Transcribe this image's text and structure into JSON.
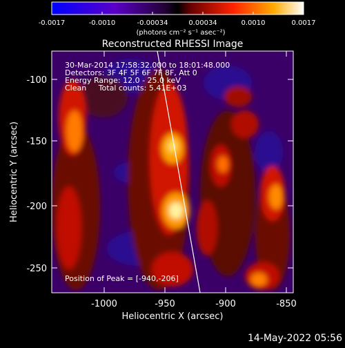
{
  "colorbar": {
    "tick_labels": [
      "-0.0017",
      "-0.0010",
      "-0.00034",
      "0.00034",
      "0.0010",
      "0.0017"
    ],
    "units_text": "(photons cm⁻² s⁻¹ asec⁻²)"
  },
  "title": "Reconstructed RHESSI Image",
  "info": {
    "time_range": "30-Mar-2014 17:58:32.000 to 18:01:48.000",
    "detectors": "Detectors: 3F 4F 5F 6F 7F 8F, Att 0",
    "energy": "Energy Range: 12.0 - 25.0 keV",
    "clean": "Clean     Total counts: 5.41E+03",
    "peak": "Position of Peak = [-940,-206]"
  },
  "x_axis": {
    "label": "Heliocentric X (arcsec)",
    "ticks": [
      "-1000",
      "-950",
      "-900",
      "-850"
    ],
    "range": [
      -1045,
      -838
    ]
  },
  "y_axis": {
    "label": "Heliocentric Y (arcsec)",
    "ticks": [
      "-100",
      "-150",
      "-200",
      "-250"
    ],
    "range": [
      -275,
      -78
    ]
  },
  "image": {
    "peak_xy": [
      -940,
      -206
    ],
    "colors": {
      "low": "#3a0068",
      "mid": "#cc1a00",
      "high": "#ffff80"
    }
  },
  "footer_date": "14-May-2022 05:56"
}
